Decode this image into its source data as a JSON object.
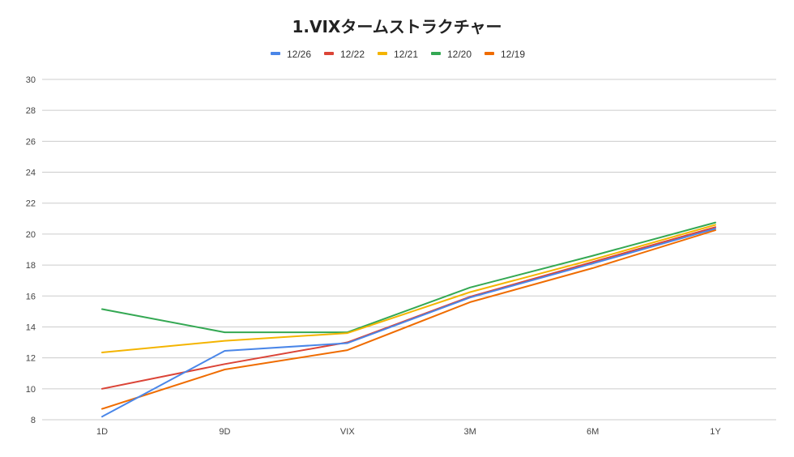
{
  "chart_data": {
    "type": "line",
    "title": "1.VIXタームストラクチャー",
    "xlabel": "",
    "ylabel": "",
    "categories": [
      "1D",
      "9D",
      "VIX",
      "3M",
      "6M",
      "1Y"
    ],
    "ylim": [
      8,
      30
    ],
    "yticks": [
      "8",
      "10",
      "12",
      "14",
      "16",
      "18",
      "20",
      "22",
      "24",
      "26",
      "28",
      "30"
    ],
    "grid": true,
    "legend_position": "top",
    "series": [
      {
        "name": "12/26",
        "color": "#4a86e8",
        "values": [
          8.2,
          12.45,
          12.95,
          15.9,
          18.1,
          20.35
        ]
      },
      {
        "name": "12/22",
        "color": "#db4437",
        "values": [
          10.0,
          11.6,
          13.0,
          15.95,
          18.2,
          20.45
        ]
      },
      {
        "name": "12/21",
        "color": "#f4b400",
        "values": [
          12.35,
          13.1,
          13.6,
          16.25,
          18.35,
          20.6
        ]
      },
      {
        "name": "12/20",
        "color": "#34a853",
        "values": [
          15.15,
          13.65,
          13.65,
          16.55,
          18.6,
          20.75
        ]
      },
      {
        "name": "12/19",
        "color": "#ef6c00",
        "values": [
          8.7,
          11.25,
          12.5,
          15.6,
          17.8,
          20.25
        ]
      }
    ]
  }
}
